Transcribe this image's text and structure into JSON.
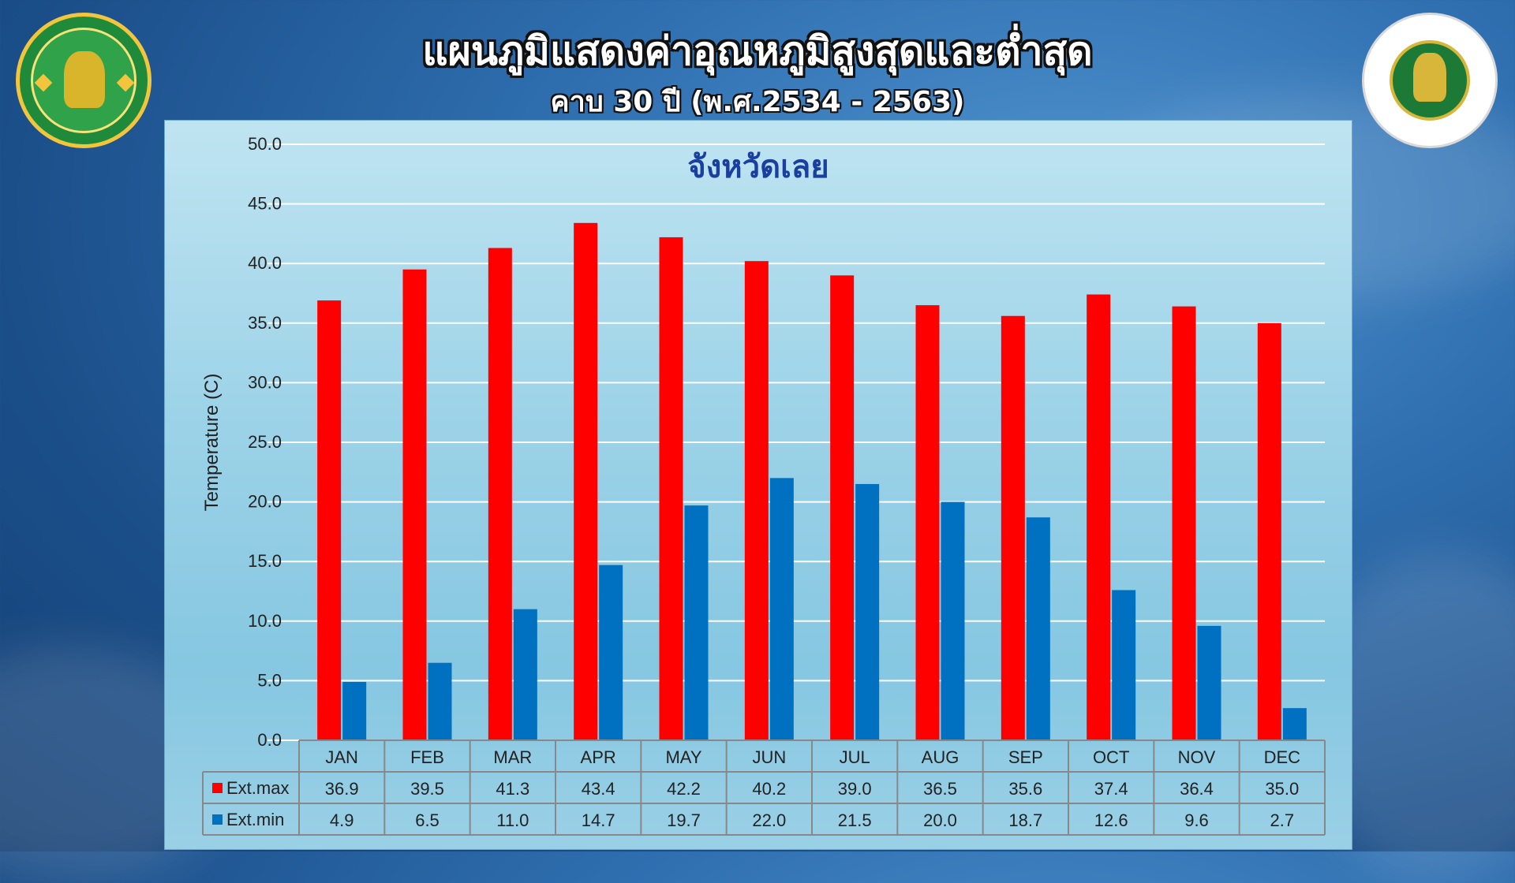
{
  "header": {
    "title": "แผนภูมิแสดงค่าอุณหภูมิสูงสุดและต่ำสุด",
    "subtitle": "คาบ 30 ปี (พ.ศ.2534 - 2563)"
  },
  "logos": {
    "left": "meteorological-department-logo",
    "right": "ministry-of-digital-economy-logo"
  },
  "chart_data": {
    "type": "bar",
    "title": "จังหวัดเลย",
    "ylabel": "Temperature (C)",
    "xlabel": "",
    "ylim": [
      0,
      50
    ],
    "ytick_step": 5,
    "yticks": [
      "0.0",
      "5.0",
      "10.0",
      "15.0",
      "20.0",
      "25.0",
      "30.0",
      "35.0",
      "40.0",
      "45.0",
      "50.0"
    ],
    "grid": true,
    "legend": "data-table",
    "categories": [
      "JAN",
      "FEB",
      "MAR",
      "APR",
      "MAY",
      "JUN",
      "JUL",
      "AUG",
      "SEP",
      "OCT",
      "NOV",
      "DEC"
    ],
    "series": [
      {
        "name": "Ext.max",
        "color": "#ff0000",
        "values": [
          36.9,
          39.5,
          41.3,
          43.4,
          42.2,
          40.2,
          39.0,
          36.5,
          35.6,
          37.4,
          36.4,
          35.0
        ]
      },
      {
        "name": "Ext.min",
        "color": "#0070c0",
        "values": [
          4.9,
          6.5,
          11.0,
          14.7,
          19.7,
          22.0,
          21.5,
          20.0,
          18.7,
          12.6,
          9.6,
          2.7
        ]
      }
    ]
  }
}
